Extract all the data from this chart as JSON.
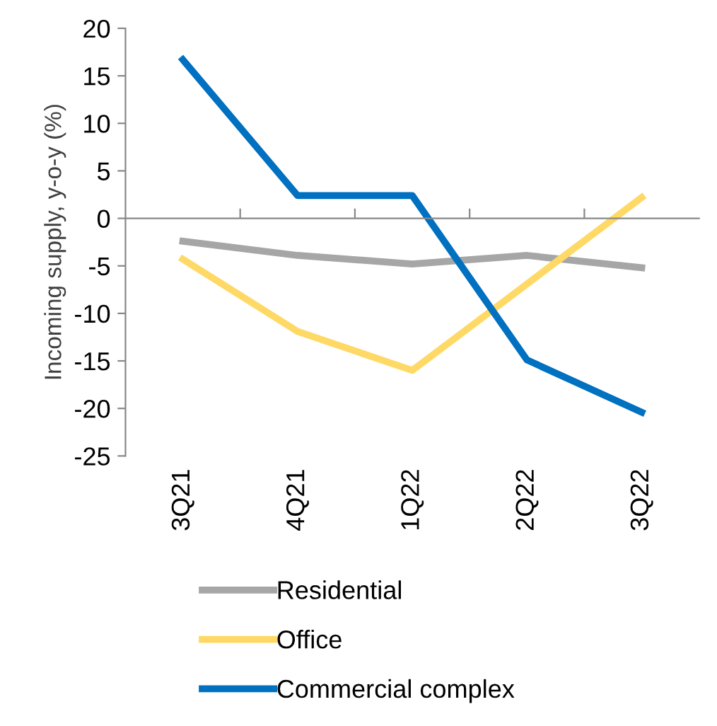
{
  "chart_data": {
    "type": "line",
    "ylabel": "Incoming supply, y-o-y (%)",
    "categories": [
      "3Q21",
      "4Q21",
      "1Q22",
      "2Q22",
      "3Q22"
    ],
    "series": [
      {
        "name": "Residential",
        "color": "#a6a6a6",
        "values": [
          -2.4,
          -3.9,
          -4.8,
          -3.9,
          -5.2
        ]
      },
      {
        "name": "Office",
        "color": "#ffd966",
        "values": [
          -4.3,
          -11.9,
          -16,
          -6.9,
          2.2
        ]
      },
      {
        "name": "Commercial complex",
        "color": "#0070c0",
        "values": [
          16.7,
          2.4,
          2.4,
          -14.9,
          -20.4
        ]
      }
    ],
    "ylim": [
      -25,
      20
    ],
    "yticks": [
      -25,
      -20,
      -15,
      -10,
      -5,
      0,
      5,
      10,
      15,
      20
    ],
    "legend": "bottom",
    "marker": "none",
    "line_style": "solid"
  }
}
